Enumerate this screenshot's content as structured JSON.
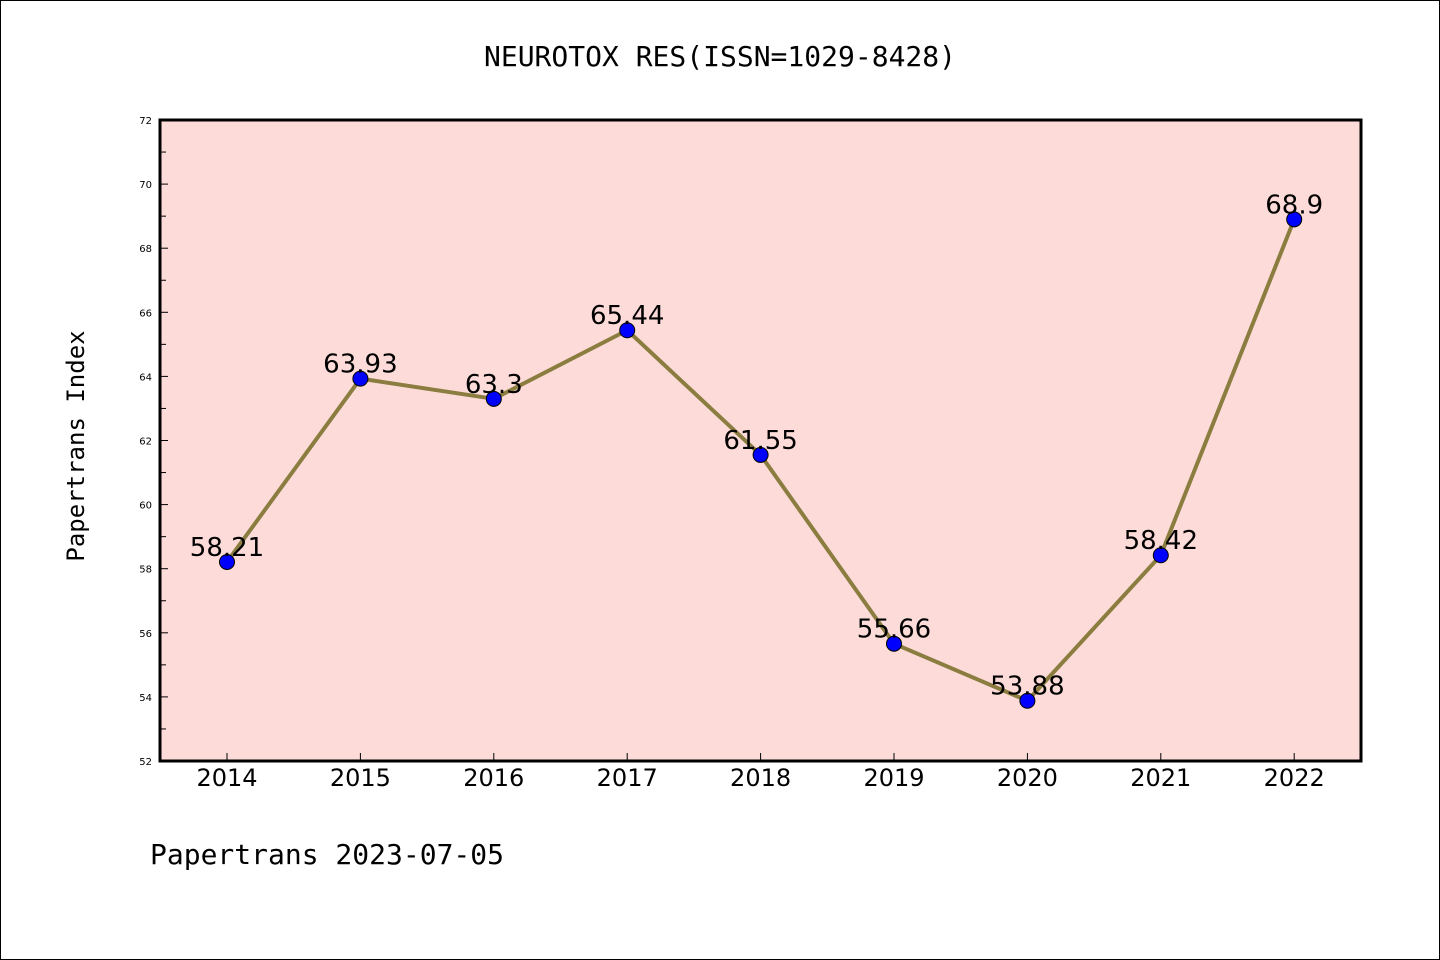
{
  "page": {
    "footer": "Papertrans 2023-07-05"
  },
  "chart_data": {
    "type": "line",
    "title": "NEUROTOX RES(ISSN=1029-8428)",
    "xlabel": "",
    "ylabel": "Papertrans Index",
    "categories": [
      "2014",
      "2015",
      "2016",
      "2017",
      "2018",
      "2019",
      "2020",
      "2021",
      "2022"
    ],
    "series": [
      {
        "values": [
          58.21,
          63.93,
          63.3,
          65.44,
          61.55,
          55.66,
          53.88,
          58.42,
          68.9
        ],
        "point_labels": [
          "58.21",
          "63.93",
          "63.3",
          "65.44",
          "61.55",
          "55.66",
          "53.88",
          "58.42",
          "68.9"
        ]
      }
    ],
    "ylim": [
      52,
      72
    ],
    "yticks": [
      "52",
      "54",
      "56",
      "58",
      "60",
      "62",
      "64",
      "66",
      "68",
      "70",
      "72"
    ],
    "grid": false,
    "legend": "none",
    "colors": {
      "plot_background": "#fddbd8",
      "line": "#8b7d3f",
      "marker": "#0000ff"
    }
  }
}
